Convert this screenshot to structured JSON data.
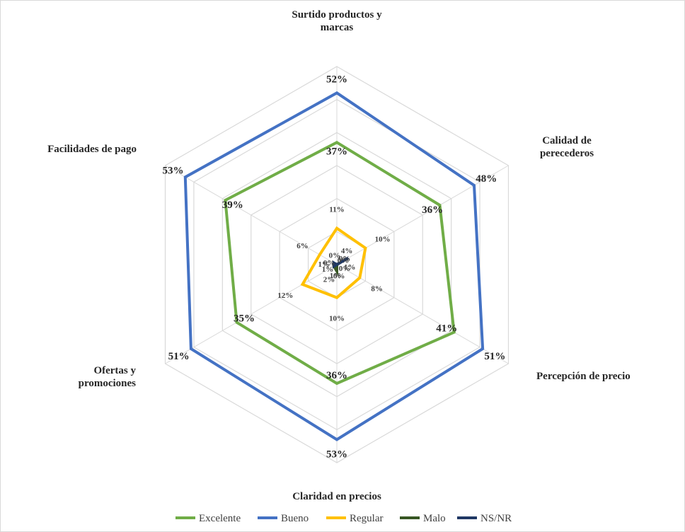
{
  "chart_data": {
    "type": "radar",
    "categories": [
      "Surtido productos y marcas",
      "Calidad de perecederos",
      "Percepción de precio",
      "Claridad en precios",
      "Ofertas y promociones",
      "Facilidades de pago"
    ],
    "category_lines": [
      [
        "Surtido productos y",
        "marcas"
      ],
      [
        "Calidad de",
        "perecederos"
      ],
      [
        "Percepción de precio"
      ],
      [
        "Claridad en precios"
      ],
      [
        "Ofertas y",
        "promociones"
      ],
      [
        "Facilidades de pago"
      ]
    ],
    "rlim": [
      0,
      60
    ],
    "gridlines": true,
    "legend_position": "bottom",
    "series": [
      {
        "name": "Excelente",
        "color": "#70ad47",
        "values": [
          37,
          36,
          41,
          36,
          35,
          39
        ],
        "labels": [
          "37%",
          "36%",
          "41%",
          "36%",
          "35%",
          "39%"
        ]
      },
      {
        "name": "Bueno",
        "color": "#4472c4",
        "values": [
          52,
          48,
          51,
          53,
          51,
          53
        ],
        "labels": [
          "52%",
          "48%",
          "51%",
          "53%",
          "51%",
          "53%"
        ]
      },
      {
        "name": "Regular",
        "color": "#ffc000",
        "values": [
          11,
          10,
          8,
          10,
          12,
          6
        ],
        "labels": [
          "11%",
          "10%",
          "8%",
          "10%",
          "12%",
          "6%"
        ]
      },
      {
        "name": "Malo",
        "color": "#375623",
        "values": [
          0,
          1,
          0,
          2,
          1,
          0
        ],
        "labels": [
          "0%",
          "1%",
          "0%",
          "2%",
          "1%",
          "0%"
        ]
      },
      {
        "name": "NS/NR",
        "color": "#203864",
        "values": [
          0,
          4,
          0,
          0,
          1,
          1
        ],
        "labels": [
          "0%",
          "4%",
          "0%",
          "0%",
          "1%",
          "1%"
        ]
      }
    ]
  }
}
